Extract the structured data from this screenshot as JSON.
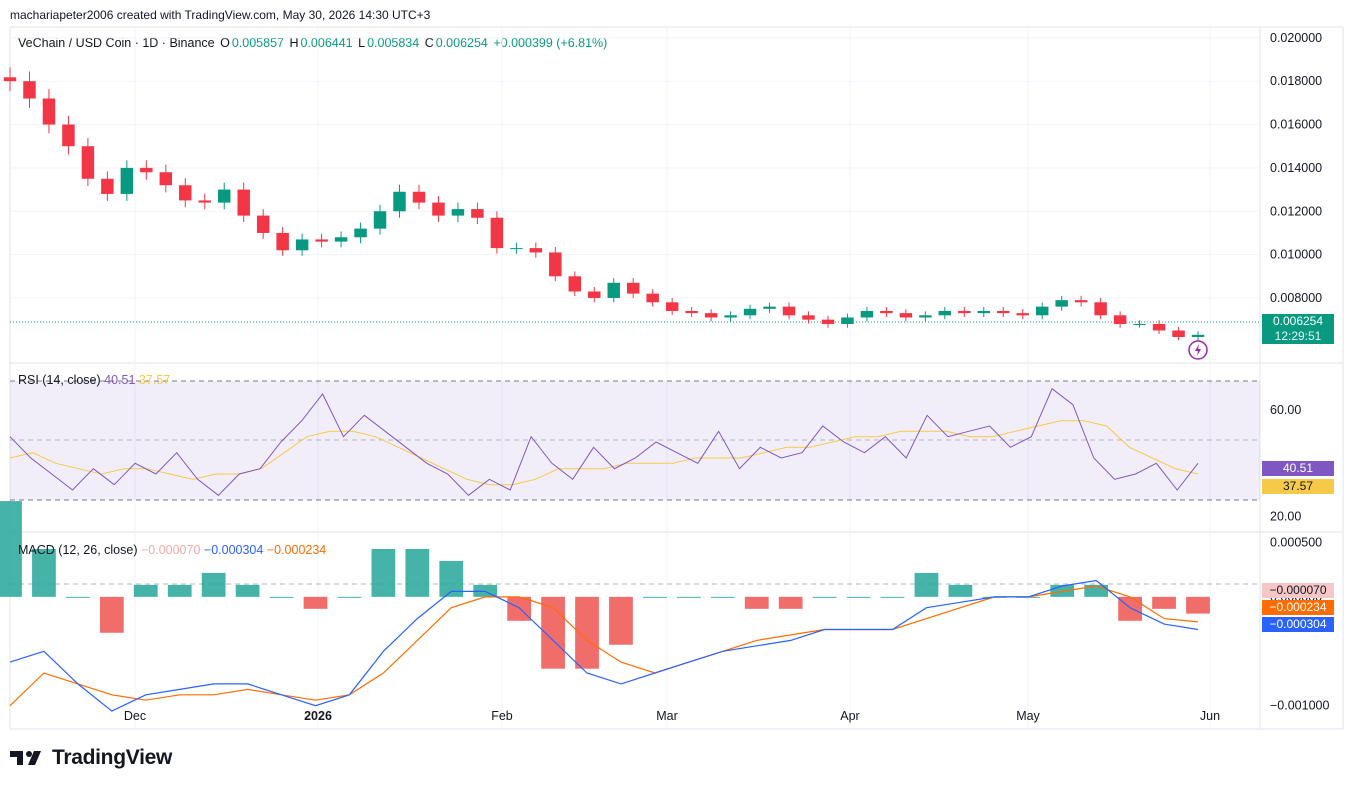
{
  "header": {
    "attribution": "machariapeter2006 created with TradingView.com, May 30, 2026 14:30 UTC+3"
  },
  "symbol": {
    "title": "VeChain / USD Coin · 1D · Binance",
    "o_label": "O",
    "o_value": "0.005857",
    "h_label": "H",
    "h_value": "0.006441",
    "l_label": "L",
    "l_value": "0.005834",
    "c_label": "C",
    "c_value": "0.006254",
    "change": "+0.000399 (+6.81%)"
  },
  "price_axis": {
    "ticks": [
      "0.020000",
      "0.018000",
      "0.016000",
      "0.014000",
      "0.012000",
      "0.010000",
      "0.008000"
    ],
    "last_price": "0.006254",
    "countdown": "12:29:51"
  },
  "rsi": {
    "label": "RSI (14, close)",
    "value": "40.51",
    "ma_value": "37.57",
    "ticks": [
      "60.00",
      "20.00"
    ]
  },
  "macd": {
    "label": "MACD (12, 26, close)",
    "hist": "−0.000070",
    "macd": "−0.000304",
    "signal": "−0.000234",
    "ticks": [
      "0.000500",
      "0.000000",
      "−0.001000"
    ],
    "axis_hist": "−0.000070",
    "axis_signal": "−0.000234",
    "axis_macd": "−0.000304"
  },
  "time_axis": {
    "labels": [
      "Dec",
      "2026",
      "Feb",
      "Mar",
      "Apr",
      "May",
      "Jun"
    ]
  },
  "brand": {
    "name": "TradingView"
  },
  "colors": {
    "up": "#089981",
    "down": "#f23645",
    "rsi": "#7e57c2",
    "rsi_ma": "#f7c948",
    "macd": "#2962ff",
    "signal": "#ff6d00",
    "hist_up": "#26a69a",
    "hist_down": "#ef5350"
  },
  "chart_data": {
    "type": "candlestick",
    "x_range": [
      "2025-11-08",
      "2026-05-30"
    ],
    "price_ylim": [
      0.005,
      0.0205
    ],
    "close_series_sampled": [
      0.018,
      0.0172,
      0.016,
      0.015,
      0.0135,
      0.0128,
      0.014,
      0.0138,
      0.0132,
      0.0125,
      0.0124,
      0.013,
      0.0118,
      0.011,
      0.0102,
      0.0107,
      0.0106,
      0.0108,
      0.0112,
      0.012,
      0.0129,
      0.0124,
      0.0118,
      0.0121,
      0.0117,
      0.0103,
      0.0103,
      0.0101,
      0.009,
      0.0083,
      0.008,
      0.0087,
      0.0082,
      0.0078,
      0.0074,
      0.0073,
      0.0071,
      0.0072,
      0.0075,
      0.0076,
      0.0072,
      0.007,
      0.0068,
      0.0071,
      0.0074,
      0.0073,
      0.0071,
      0.0072,
      0.0074,
      0.0073,
      0.0074,
      0.0073,
      0.0072,
      0.0076,
      0.0079,
      0.0078,
      0.0072,
      0.0068,
      0.0068,
      0.0065,
      0.0062,
      0.0063
    ],
    "rsi_ylim": [
      15,
      75
    ],
    "rsi_bands": [
      70,
      50,
      30
    ],
    "rsi_series_sampled": [
      50,
      42,
      36,
      30,
      38,
      32,
      40,
      36,
      44,
      34,
      28,
      36,
      38,
      48,
      56,
      66,
      50,
      58,
      52,
      46,
      40,
      36,
      28,
      34,
      30,
      50,
      40,
      34,
      46,
      38,
      42,
      48,
      44,
      40,
      52,
      38,
      46,
      42,
      44,
      54,
      48,
      44,
      50,
      42,
      58,
      50,
      52,
      54,
      46,
      50,
      68,
      62,
      42,
      34,
      36,
      40,
      30,
      40
    ],
    "rsi_ma_series_sampled": [
      42,
      44,
      40,
      38,
      36,
      38,
      38,
      36,
      34,
      36,
      36,
      38,
      44,
      50,
      52,
      52,
      50,
      46,
      42,
      38,
      34,
      32,
      32,
      34,
      38,
      38,
      38,
      40,
      40,
      40,
      42,
      42,
      42,
      44,
      46,
      46,
      48,
      50,
      50,
      52,
      52,
      52,
      50,
      50,
      52,
      54,
      56,
      56,
      54,
      46,
      42,
      38,
      36
    ],
    "macd_ylim": [
      -0.00115,
      0.00055
    ],
    "macd_series_sampled": [
      -0.0006,
      -0.0005,
      -0.0008,
      -0.00105,
      -0.0009,
      -0.00085,
      -0.0008,
      -0.0008,
      -0.0009,
      -0.001,
      -0.0009,
      -0.0005,
      -0.0002,
      5e-05,
      5e-05,
      -0.0001,
      -0.0004,
      -0.0007,
      -0.0008,
      -0.0007,
      -0.0006,
      -0.0005,
      -0.00045,
      -0.0004,
      -0.0003,
      -0.0003,
      -0.0003,
      -0.0001,
      -5e-05,
      0.0,
      0.0,
      0.0001,
      0.00015,
      -0.0001,
      -0.00025,
      -0.0003
    ],
    "signal_series_sampled": [
      -0.001,
      -0.0007,
      -0.0008,
      -0.0009,
      -0.00095,
      -0.0009,
      -0.0009,
      -0.00085,
      -0.0009,
      -0.00095,
      -0.0009,
      -0.0007,
      -0.0004,
      -0.0001,
      0.0,
      0.0,
      -0.0001,
      -0.0004,
      -0.0006,
      -0.0007,
      -0.0006,
      -0.0005,
      -0.0004,
      -0.00035,
      -0.0003,
      -0.0003,
      -0.0003,
      -0.0002,
      -0.0001,
      0.0,
      0.0,
      5e-05,
      0.0001,
      0.0,
      -0.0002,
      -0.00023
    ]
  }
}
